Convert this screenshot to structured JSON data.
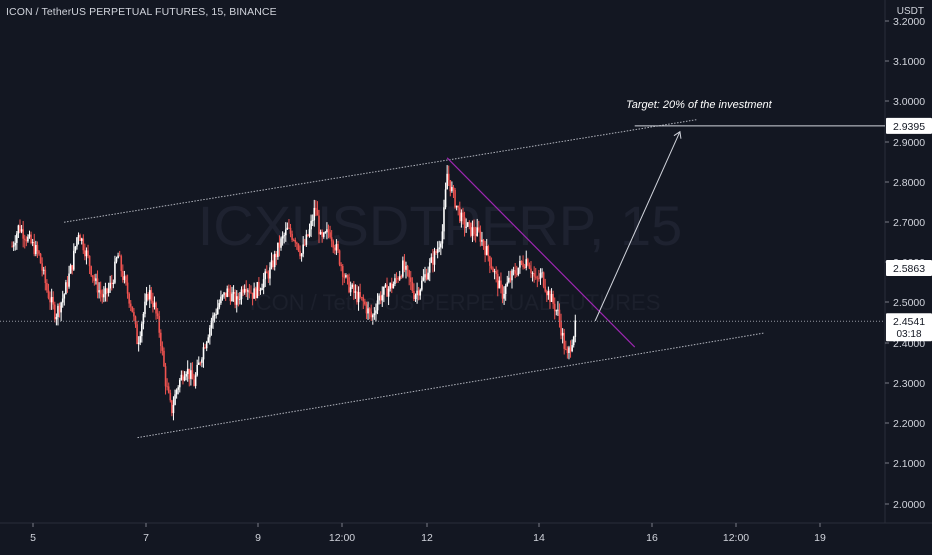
{
  "header": {
    "symbol_title": "ICON / TetherUS PERPETUAL FUTURES, 15, BINANCE",
    "currency": "USDT"
  },
  "watermark": {
    "line1": "ICXUSDTPERP, 15",
    "line2": "ICON / TetherUS PERPETUAL FUTURES"
  },
  "colors": {
    "background": "#131722",
    "up_candle": "#ffffff",
    "down_candle": "#ef5350",
    "last_price_line": "#9598a1",
    "downtrend_line": "#9c27b0",
    "channel_line": "#b2b5be"
  },
  "annotations": {
    "target_text": "Target: 20% of the investment",
    "target_price": "2.9395",
    "mid_price": "2.5863",
    "last_price": "2.4541",
    "countdown": "03:18"
  },
  "chart_data": {
    "type": "candlestick",
    "title": "ICON / TetherUS PERPETUAL FUTURES, 15, BINANCE",
    "y_axis": {
      "label": "USDT",
      "range": [
        1.95,
        3.22
      ],
      "ticks": [
        "2.0000",
        "2.1000",
        "2.2000",
        "2.3000",
        "2.4000",
        "2.5000",
        "2.6000",
        "2.7000",
        "2.8000",
        "2.9000",
        "3.0000",
        "3.1000",
        "3.2000"
      ]
    },
    "x_axis": {
      "ticks": [
        "5",
        "7",
        "9",
        "12:00",
        "12",
        "14",
        "16",
        "12:00",
        "19"
      ],
      "range": [
        4.63,
        21.5
      ]
    },
    "price_path": [
      [
        4.63,
        2.64
      ],
      [
        4.75,
        2.69
      ],
      [
        4.9,
        2.66
      ],
      [
        5.1,
        2.62
      ],
      [
        5.25,
        2.53
      ],
      [
        5.4,
        2.47
      ],
      [
        5.55,
        2.52
      ],
      [
        5.7,
        2.6
      ],
      [
        5.8,
        2.68
      ],
      [
        5.95,
        2.62
      ],
      [
        6.1,
        2.55
      ],
      [
        6.25,
        2.51
      ],
      [
        6.4,
        2.55
      ],
      [
        6.5,
        2.62
      ],
      [
        6.6,
        2.56
      ],
      [
        6.75,
        2.49
      ],
      [
        6.85,
        2.4
      ],
      [
        6.95,
        2.47
      ],
      [
        7.05,
        2.53
      ],
      [
        7.15,
        2.49
      ],
      [
        7.25,
        2.42
      ],
      [
        7.35,
        2.3
      ],
      [
        7.45,
        2.23
      ],
      [
        7.55,
        2.29
      ],
      [
        7.7,
        2.34
      ],
      [
        7.85,
        2.3
      ],
      [
        8.0,
        2.38
      ],
      [
        8.15,
        2.45
      ],
      [
        8.3,
        2.5
      ],
      [
        8.45,
        2.53
      ],
      [
        8.6,
        2.5
      ],
      [
        8.75,
        2.55
      ],
      [
        8.9,
        2.52
      ],
      [
        9.05,
        2.55
      ],
      [
        9.2,
        2.58
      ],
      [
        9.35,
        2.64
      ],
      [
        9.5,
        2.68
      ],
      [
        9.65,
        2.66
      ],
      [
        9.75,
        2.62
      ],
      [
        9.9,
        2.68
      ],
      [
        10.0,
        2.74
      ],
      [
        10.1,
        2.65
      ],
      [
        10.25,
        2.68
      ],
      [
        10.4,
        2.62
      ],
      [
        10.55,
        2.55
      ],
      [
        10.7,
        2.52
      ],
      [
        10.85,
        2.5
      ],
      [
        11.0,
        2.46
      ],
      [
        11.1,
        2.51
      ],
      [
        11.25,
        2.53
      ],
      [
        11.4,
        2.55
      ],
      [
        11.55,
        2.59
      ],
      [
        11.65,
        2.56
      ],
      [
        11.75,
        2.52
      ],
      [
        11.85,
        2.54
      ],
      [
        11.95,
        2.57
      ],
      [
        12.05,
        2.6
      ],
      [
        12.15,
        2.63
      ],
      [
        12.25,
        2.68
      ],
      [
        12.33,
        2.82
      ],
      [
        12.45,
        2.76
      ],
      [
        12.6,
        2.7
      ],
      [
        12.75,
        2.68
      ],
      [
        12.9,
        2.67
      ],
      [
        13.05,
        2.62
      ],
      [
        13.2,
        2.56
      ],
      [
        13.3,
        2.52
      ],
      [
        13.45,
        2.56
      ],
      [
        13.6,
        2.59
      ],
      [
        13.75,
        2.61
      ],
      [
        13.9,
        2.55
      ],
      [
        14.0,
        2.57
      ],
      [
        14.1,
        2.53
      ],
      [
        14.2,
        2.5
      ],
      [
        14.3,
        2.47
      ],
      [
        14.38,
        2.41
      ],
      [
        14.45,
        2.36
      ],
      [
        14.52,
        2.4
      ],
      [
        14.62,
        2.45
      ]
    ],
    "last_price": 2.4541,
    "overlays": {
      "channel_upper": [
        [
          5.55,
          2.7
        ],
        [
          16.75,
          2.955
        ]
      ],
      "channel_lower": [
        [
          6.85,
          2.165
        ],
        [
          17.95,
          2.425
        ]
      ],
      "downtrend": [
        [
          12.33,
          2.86
        ],
        [
          15.65,
          2.39
        ]
      ],
      "target_arrow": [
        [
          14.95,
          2.455
        ],
        [
          16.45,
          2.925
        ]
      ],
      "target_line": [
        [
          15.65,
          2.9395
        ],
        [
          21.0,
          2.9395
        ]
      ]
    }
  }
}
